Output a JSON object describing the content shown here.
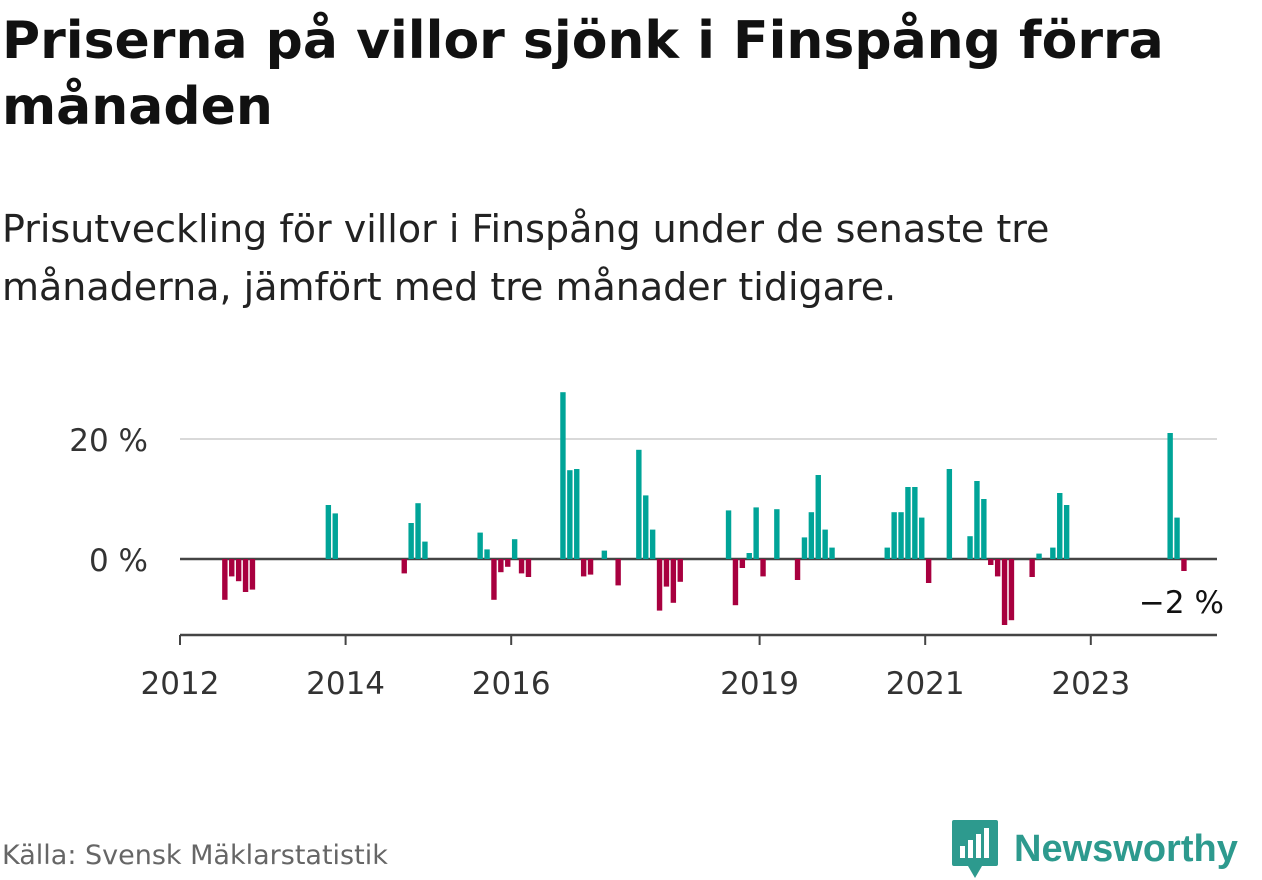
{
  "header": {
    "title": "Priserna på villor sjönk i Finspång förra månaden",
    "subtitle": "Prisutveckling för villor i Finspång under de senaste tre månaderna, jämfört med tre månader tidigare."
  },
  "footer": {
    "source": "Källa: Svensk Mäklarstatistik",
    "brand": "Newsworthy",
    "brand_icon": "newsworthy-logo-icon",
    "brand_color": "#2d9a8e"
  },
  "chart_data": {
    "type": "bar",
    "x_ticks": [
      "2012",
      "2014",
      "2016",
      "2019",
      "2021",
      "2023"
    ],
    "y_ticks": [
      "0 %",
      "20 %"
    ],
    "annotation": "−2 %",
    "ylim": [
      -13,
      30
    ],
    "xlim": [
      "2012-01",
      "2024-07"
    ],
    "grid": true,
    "colors": {
      "positive": "#00a498",
      "negative": "#a8003f"
    },
    "values": [
      {
        "x": "2012-07",
        "y": -6.8
      },
      {
        "x": "2012-08",
        "y": -2.9
      },
      {
        "x": "2012-09",
        "y": -3.7
      },
      {
        "x": "2012-10",
        "y": -5.5
      },
      {
        "x": "2012-11",
        "y": -5.1
      },
      {
        "x": "2013-10",
        "y": 9.0
      },
      {
        "x": "2013-11",
        "y": 7.6
      },
      {
        "x": "2014-09",
        "y": -2.4
      },
      {
        "x": "2014-10",
        "y": 6.0
      },
      {
        "x": "2014-11",
        "y": 9.3
      },
      {
        "x": "2014-12",
        "y": 2.9
      },
      {
        "x": "2015-08",
        "y": 4.4
      },
      {
        "x": "2015-09",
        "y": 1.6
      },
      {
        "x": "2015-10",
        "y": -6.8
      },
      {
        "x": "2015-11",
        "y": -2.2
      },
      {
        "x": "2015-12",
        "y": -1.3
      },
      {
        "x": "2016-01",
        "y": 3.3
      },
      {
        "x": "2016-02",
        "y": -2.4
      },
      {
        "x": "2016-03",
        "y": -3.0
      },
      {
        "x": "2016-08",
        "y": 27.8
      },
      {
        "x": "2016-09",
        "y": 14.8
      },
      {
        "x": "2016-10",
        "y": 15.0
      },
      {
        "x": "2016-11",
        "y": -2.9
      },
      {
        "x": "2016-12",
        "y": -2.6
      },
      {
        "x": "2017-02",
        "y": 1.4
      },
      {
        "x": "2017-04",
        "y": -4.4
      },
      {
        "x": "2017-07",
        "y": 18.2
      },
      {
        "x": "2017-08",
        "y": 10.6
      },
      {
        "x": "2017-09",
        "y": 4.9
      },
      {
        "x": "2017-10",
        "y": -8.6
      },
      {
        "x": "2017-11",
        "y": -4.6
      },
      {
        "x": "2017-12",
        "y": -7.3
      },
      {
        "x": "2018-01",
        "y": -3.8
      },
      {
        "x": "2018-08",
        "y": 8.1
      },
      {
        "x": "2018-09",
        "y": -7.7
      },
      {
        "x": "2018-10",
        "y": -1.5
      },
      {
        "x": "2018-11",
        "y": 1.0
      },
      {
        "x": "2018-12",
        "y": 8.6
      },
      {
        "x": "2019-01",
        "y": -2.9
      },
      {
        "x": "2019-03",
        "y": 8.3
      },
      {
        "x": "2019-06",
        "y": -3.5
      },
      {
        "x": "2019-07",
        "y": 3.6
      },
      {
        "x": "2019-08",
        "y": 7.8
      },
      {
        "x": "2019-09",
        "y": 14.0
      },
      {
        "x": "2019-10",
        "y": 4.9
      },
      {
        "x": "2019-11",
        "y": 1.9
      },
      {
        "x": "2020-07",
        "y": 1.9
      },
      {
        "x": "2020-08",
        "y": 7.8
      },
      {
        "x": "2020-09",
        "y": 7.8
      },
      {
        "x": "2020-10",
        "y": 12.0
      },
      {
        "x": "2020-11",
        "y": 12.0
      },
      {
        "x": "2020-12",
        "y": 6.9
      },
      {
        "x": "2021-01",
        "y": -4.0
      },
      {
        "x": "2021-04",
        "y": 15.0
      },
      {
        "x": "2021-07",
        "y": 3.8
      },
      {
        "x": "2021-08",
        "y": 13.0
      },
      {
        "x": "2021-09",
        "y": 10.0
      },
      {
        "x": "2021-10",
        "y": -1.0
      },
      {
        "x": "2021-11",
        "y": -2.9
      },
      {
        "x": "2021-12",
        "y": -11.0
      },
      {
        "x": "2022-01",
        "y": -10.2
      },
      {
        "x": "2022-04",
        "y": -3.0
      },
      {
        "x": "2022-05",
        "y": 0.9
      },
      {
        "x": "2022-07",
        "y": 1.9
      },
      {
        "x": "2022-08",
        "y": 11.0
      },
      {
        "x": "2022-09",
        "y": 9.0
      },
      {
        "x": "2023-12",
        "y": 21.0
      },
      {
        "x": "2024-01",
        "y": 6.9
      },
      {
        "x": "2024-02",
        "y": -2.0
      }
    ]
  }
}
